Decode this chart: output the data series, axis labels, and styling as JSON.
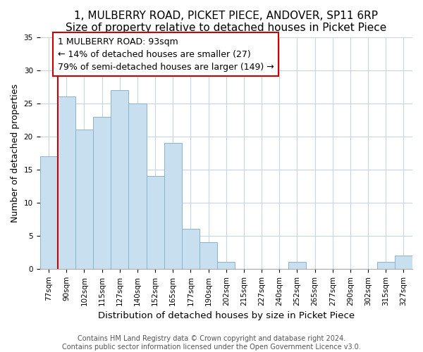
{
  "title": "1, MULBERRY ROAD, PICKET PIECE, ANDOVER, SP11 6RP",
  "subtitle": "Size of property relative to detached houses in Picket Piece",
  "xlabel": "Distribution of detached houses by size in Picket Piece",
  "ylabel": "Number of detached properties",
  "bin_labels": [
    "77sqm",
    "90sqm",
    "102sqm",
    "115sqm",
    "127sqm",
    "140sqm",
    "152sqm",
    "165sqm",
    "177sqm",
    "190sqm",
    "202sqm",
    "215sqm",
    "227sqm",
    "240sqm",
    "252sqm",
    "265sqm",
    "277sqm",
    "290sqm",
    "302sqm",
    "315sqm",
    "327sqm"
  ],
  "bar_heights": [
    17,
    26,
    21,
    23,
    27,
    25,
    14,
    19,
    6,
    4,
    1,
    0,
    0,
    0,
    1,
    0,
    0,
    0,
    0,
    1,
    2
  ],
  "bar_color": "#c8dff0",
  "bar_edge_color": "#8ab4cc",
  "vline_x_index": 1,
  "ylim": [
    0,
    35
  ],
  "yticks": [
    0,
    5,
    10,
    15,
    20,
    25,
    30,
    35
  ],
  "annotation_title": "1 MULBERRY ROAD: 93sqm",
  "annotation_line1": "← 14% of detached houses are smaller (27)",
  "annotation_line2": "79% of semi-detached houses are larger (149) →",
  "annotation_box_color": "#ffffff",
  "annotation_box_edge": "#cc0000",
  "vline_color": "#cc0000",
  "footer_line1": "Contains HM Land Registry data © Crown copyright and database right 2024.",
  "footer_line2": "Contains public sector information licensed under the Open Government Licence v3.0.",
  "title_fontsize": 11,
  "subtitle_fontsize": 10,
  "xlabel_fontsize": 9.5,
  "ylabel_fontsize": 9,
  "tick_fontsize": 7.5,
  "annotation_fontsize": 9,
  "footer_fontsize": 7
}
